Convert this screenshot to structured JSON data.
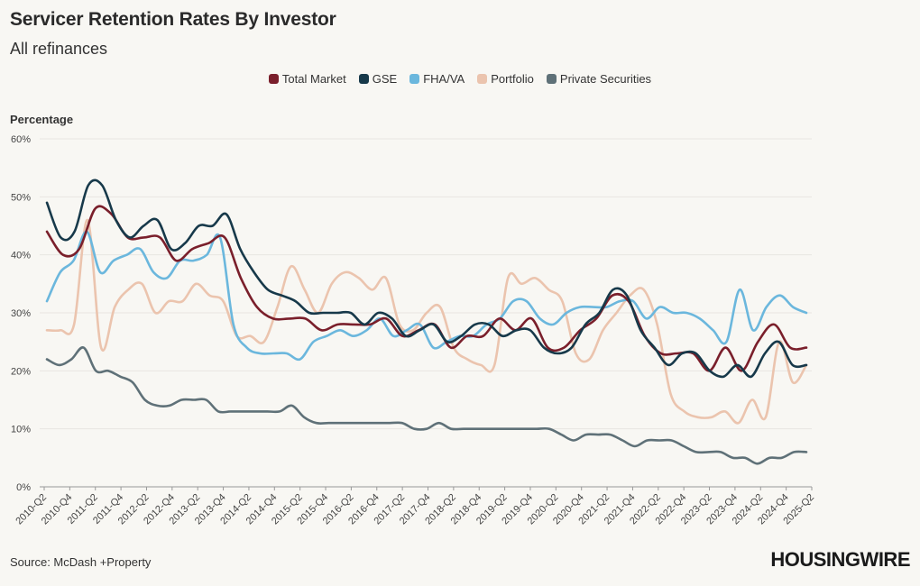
{
  "title": "Servicer Retention Rates By Investor",
  "subtitle": "All refinances",
  "ylabel": "Percentage",
  "source": "Source: McDash +Property",
  "logo": "HOUSINGWIRE",
  "chart_data": {
    "type": "line",
    "title": "Servicer Retention Rates By Investor",
    "subtitle": "All refinances",
    "xlabel": "",
    "ylabel": "Percentage",
    "ylim": [
      0,
      60
    ],
    "yticks": [
      "0%",
      "10%",
      "20%",
      "30%",
      "40%",
      "50%",
      "60%"
    ],
    "legend_position": "top-center",
    "x_tick_labels": [
      "2010-Q2",
      "2010-Q4",
      "2011-Q2",
      "2011-Q4",
      "2012-Q2",
      "2012-Q4",
      "2013-Q2",
      "2013-Q4",
      "2014-Q2",
      "2014-Q4",
      "2015-Q2",
      "2015-Q4",
      "2016-Q2",
      "2016-Q4",
      "2017-Q2",
      "2017-Q4",
      "2018-Q2",
      "2018-Q4",
      "2019-Q2",
      "2019-Q4",
      "2020-Q2",
      "2020-Q4",
      "2021-Q2",
      "2021-Q4",
      "2022-Q2",
      "2022-Q4",
      "2023-Q2",
      "2023-Q4",
      "2024-Q2",
      "2024-Q4",
      "2025-Q2"
    ],
    "series": [
      {
        "name": "Total Market",
        "color": "#7a1f2b",
        "values": [
          44,
          40,
          41,
          48,
          47,
          43,
          43,
          43,
          39,
          41,
          42,
          43,
          36,
          31,
          29,
          29,
          29,
          27,
          28,
          28,
          28,
          29,
          26,
          27,
          28,
          24,
          26,
          26,
          29,
          27,
          29,
          24,
          24,
          27,
          29,
          33,
          32,
          26,
          23,
          23,
          23,
          20,
          24,
          20,
          25,
          28,
          24,
          24
        ]
      },
      {
        "name": "GSE",
        "color": "#17394a",
        "values": [
          49,
          43,
          44,
          52,
          52,
          46,
          43,
          45,
          46,
          41,
          42,
          45,
          45,
          47,
          41,
          37,
          34,
          33,
          32,
          30,
          30,
          30,
          30,
          28,
          30,
          29,
          26,
          27,
          28,
          25,
          26,
          28,
          28,
          26,
          27,
          27,
          24,
          23,
          24,
          28,
          30,
          34,
          33,
          27,
          24,
          21,
          23,
          23,
          20,
          19,
          21,
          19,
          23,
          25,
          21,
          21
        ]
      },
      {
        "name": "FHA/VA",
        "color": "#6bb7dd",
        "values": [
          32,
          37,
          39,
          44,
          37,
          39,
          40,
          41,
          37,
          36,
          39,
          39,
          40,
          43,
          28,
          24,
          23,
          23,
          23,
          22,
          25,
          26,
          27,
          26,
          27,
          29,
          26,
          27,
          28,
          24,
          25,
          26,
          26,
          28,
          29,
          32,
          32,
          29,
          28,
          30,
          31,
          31,
          31,
          32,
          32,
          29,
          31,
          30,
          30,
          29,
          27,
          25,
          34,
          27,
          31,
          33,
          31,
          30
        ]
      },
      {
        "name": "Portfolio",
        "color": "#ebc4ae",
        "values": [
          27,
          27,
          28,
          46,
          24,
          31,
          34,
          35,
          30,
          32,
          32,
          35,
          33,
          32,
          26,
          26,
          25,
          31,
          38,
          34,
          30,
          35,
          37,
          36,
          34,
          36,
          28,
          27,
          30,
          31,
          24,
          22,
          21,
          21,
          36,
          35,
          36,
          34,
          32,
          23,
          22,
          27,
          30,
          33,
          34,
          28,
          16,
          13,
          12,
          12,
          13,
          11,
          15,
          12,
          25,
          18,
          21
        ]
      },
      {
        "name": "Private Securities",
        "color": "#5f7178",
        "values": [
          22,
          21,
          22,
          24,
          20,
          20,
          19,
          18,
          15,
          14,
          14,
          15,
          15,
          15,
          13,
          13,
          13,
          13,
          13,
          13,
          14,
          12,
          11,
          11,
          11,
          11,
          11,
          11,
          11,
          11,
          10,
          10,
          11,
          10,
          10,
          10,
          10,
          10,
          10,
          10,
          10,
          10,
          9,
          8,
          9,
          9,
          9,
          8,
          7,
          8,
          8,
          8,
          7,
          6,
          6,
          6,
          5,
          5,
          4,
          5,
          5,
          6,
          6
        ]
      }
    ]
  }
}
